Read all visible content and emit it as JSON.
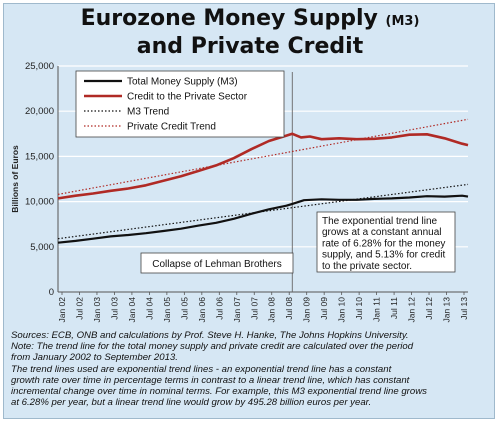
{
  "title_main": "Eurozone Money Supply",
  "title_suffix": "(M3)",
  "title_line2": "and Private Credit",
  "sources": [
    "Sources: ECB, ONB and calculations by Prof. Steve H. Hanke, The Johns Hopkins University.",
    "Note: The trend line for the total money supply and private credit are calculated over the period",
    "from January 2002 to September 2013.",
    "The trend lines used are exponential trend lines - an exponential trend line has a constant",
    "growth rate over time in percentage terms in contrast to a linear trend line, which has constant",
    "incremental change over time in nominal terms. For example, this M3 exponential trend line grows",
    "at 6.28% per year, but a linear trend line would grow by 495.28 billion euros per year."
  ],
  "colors": {
    "m3": "#111111",
    "credit": "#b02a25",
    "background": "#d6e7f4",
    "grid": "#ffffff"
  },
  "chart_data": {
    "type": "line",
    "ylabel": "Billions of Euros",
    "ylim": [
      0,
      25000
    ],
    "yticks": [
      0,
      5000,
      10000,
      15000,
      20000,
      25000
    ],
    "ytick_labels": [
      "0",
      "5,000",
      "10,000",
      "15,000",
      "20,000",
      "25,000"
    ],
    "x_range": [
      "2002-01",
      "2013-09"
    ],
    "x_ticks": [
      "Jan 02",
      "Jul 02",
      "Jan 03",
      "Jul 03",
      "Jan 04",
      "Jul 04",
      "Jan 05",
      "Jul 05",
      "Jan 06",
      "Jul 06",
      "Jan 07",
      "Jul 07",
      "Jan 08",
      "Jul 08",
      "Jan 09",
      "Jul 09",
      "Jan 10",
      "Jul 10",
      "Jan 11",
      "Jul 11",
      "Jan 12",
      "Jul 12",
      "Jan 13",
      "Jul 13"
    ],
    "grid": true,
    "legend_position": "top-left",
    "series": [
      {
        "name": "Total Money Supply (M3)",
        "style": "solid",
        "x": [
          "2002-01",
          "2002-07",
          "2003-01",
          "2003-07",
          "2004-01",
          "2004-07",
          "2005-01",
          "2005-07",
          "2006-01",
          "2006-07",
          "2007-01",
          "2007-07",
          "2008-01",
          "2008-07",
          "2008-09",
          "2009-01",
          "2009-07",
          "2010-01",
          "2010-07",
          "2011-01",
          "2011-07",
          "2012-01",
          "2012-07",
          "2013-01",
          "2013-07",
          "2013-09"
        ],
        "values": [
          5450,
          5650,
          5900,
          6150,
          6300,
          6500,
          6750,
          7000,
          7350,
          7650,
          8100,
          8650,
          9150,
          9550,
          9750,
          10150,
          10250,
          10200,
          10200,
          10300,
          10350,
          10450,
          10600,
          10550,
          10650,
          10550
        ]
      },
      {
        "name": "Credit to the Private Sector",
        "style": "solid",
        "x": [
          "2002-01",
          "2002-07",
          "2003-01",
          "2003-07",
          "2004-01",
          "2004-07",
          "2005-01",
          "2005-07",
          "2006-01",
          "2006-07",
          "2007-01",
          "2007-07",
          "2008-01",
          "2008-07",
          "2008-09",
          "2008-12",
          "2009-03",
          "2009-07",
          "2010-01",
          "2010-07",
          "2011-01",
          "2011-07",
          "2012-01",
          "2012-07",
          "2013-01",
          "2013-07",
          "2013-09"
        ],
        "values": [
          10350,
          10650,
          10900,
          11200,
          11450,
          11800,
          12300,
          12800,
          13400,
          14000,
          14800,
          15800,
          16700,
          17300,
          17500,
          17100,
          17200,
          16900,
          17000,
          16900,
          16950,
          17100,
          17400,
          17450,
          17000,
          16400,
          16250
        ]
      },
      {
        "name": "M3 Trend",
        "style": "dotted",
        "x": [
          "2002-01",
          "2013-09"
        ],
        "values": [
          5900,
          11900
        ]
      },
      {
        "name": "Private Credit Trend",
        "style": "dotted",
        "x": [
          "2002-01",
          "2013-09"
        ],
        "values": [
          10800,
          19100
        ]
      }
    ],
    "event_marker": {
      "x": "2008-09",
      "label": "Collapse of Lehman Brothers"
    },
    "annotation_lines": [
      "The exponential trend line",
      "grows at a constant annual",
      "rate of 6.28% for the money",
      "supply, and 5.13% for credit",
      "to the private sector."
    ]
  }
}
